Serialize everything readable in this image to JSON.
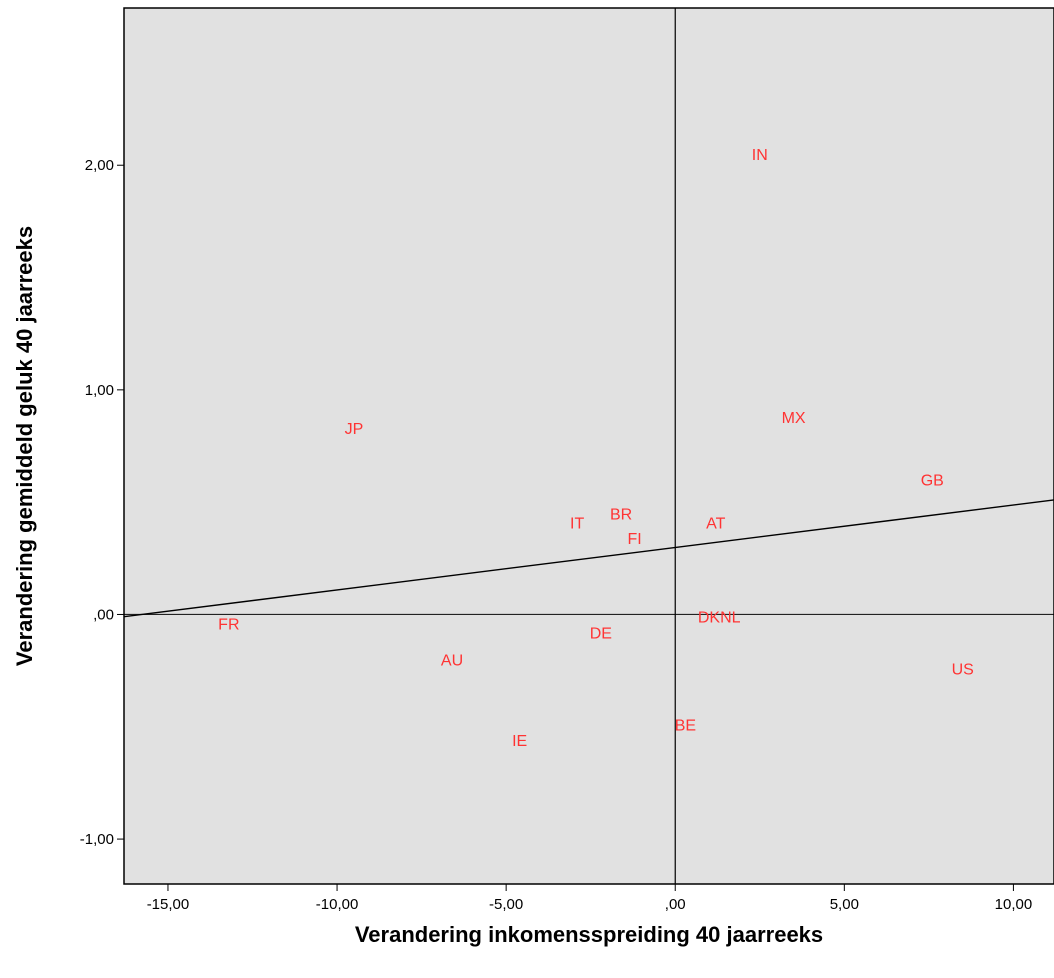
{
  "chart_data": {
    "type": "scatter",
    "title": "",
    "xlabel": "Verandering inkomensspreiding 40 jaarreeks",
    "ylabel": "Verandering gemiddeld geluk  40 jaarreeks",
    "xlim": [
      -16.3,
      11.2
    ],
    "ylim": [
      -1.2,
      2.7
    ],
    "xticks": [
      -15,
      -10,
      -5,
      0,
      5,
      10
    ],
    "xtick_labels": [
      "-15,00",
      "-10,00",
      "-5,00",
      ",00",
      "5,00",
      "10,00"
    ],
    "yticks": [
      -1,
      0,
      1,
      2
    ],
    "ytick_labels": [
      "-1,00",
      ",00",
      "1,00",
      "2,00"
    ],
    "grid": false,
    "background": "#e1e1e1",
    "label_color": "#ff3333",
    "reference_lines": {
      "x": 0,
      "y": 0
    },
    "fit_line": {
      "x": [
        -16.3,
        11.2
      ],
      "y": [
        -0.01,
        0.51
      ]
    },
    "points": [
      {
        "label": "IN",
        "x": 2.5,
        "y": 2.05
      },
      {
        "label": "JP",
        "x": -9.5,
        "y": 0.83
      },
      {
        "label": "MX",
        "x": 3.5,
        "y": 0.88
      },
      {
        "label": "GB",
        "x": 7.6,
        "y": 0.6
      },
      {
        "label": "IT",
        "x": -2.9,
        "y": 0.41
      },
      {
        "label": "BR",
        "x": -1.6,
        "y": 0.45
      },
      {
        "label": "AT",
        "x": 1.2,
        "y": 0.41
      },
      {
        "label": "FI",
        "x": -1.2,
        "y": 0.34
      },
      {
        "label": "FR",
        "x": -13.2,
        "y": -0.04
      },
      {
        "label": "DKNL",
        "x": 1.3,
        "y": -0.01
      },
      {
        "label": "DE",
        "x": -2.2,
        "y": -0.08
      },
      {
        "label": "AU",
        "x": -6.6,
        "y": -0.2
      },
      {
        "label": "US",
        "x": 8.5,
        "y": -0.24
      },
      {
        "label": "BE",
        "x": 0.3,
        "y": -0.49
      },
      {
        "label": "IE",
        "x": -4.6,
        "y": -0.56
      }
    ]
  }
}
